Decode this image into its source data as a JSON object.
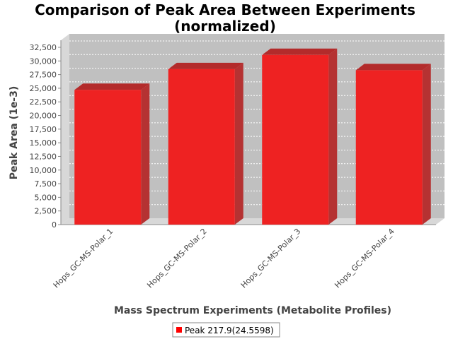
{
  "chart_data": {
    "type": "bar",
    "title": "Comparison of Peak Area Between Experiments",
    "subtitle": "(normalized)",
    "xlabel": "Mass Spectrum Experiments (Metabolite Profiles)",
    "ylabel": "Peak Area (1e-3)",
    "categories": [
      "Hops_GC-MS-Polar_1",
      "Hops_GC-MS-Polar_2",
      "Hops_GC-MS-Polar_3",
      "Hops_GC-MS-Polar_4"
    ],
    "series": [
      {
        "name": "Peak 217.9(24.5598)",
        "values": [
          24700,
          28500,
          31100,
          28300
        ]
      }
    ],
    "ylim": [
      0,
      32500
    ],
    "yticks": [
      0,
      2500,
      5000,
      7500,
      10000,
      12500,
      15000,
      17500,
      20000,
      22500,
      25000,
      27500,
      30000,
      32500
    ],
    "ytick_labels": [
      "0",
      "2,500",
      "5,000",
      "7,500",
      "10,000",
      "12,500",
      "15,000",
      "17,500",
      "20,000",
      "22,500",
      "25,000",
      "27,500",
      "30,000",
      "32,500"
    ],
    "grid": true,
    "legend_position": "bottom-center",
    "colors": {
      "bar_front": "#ee2222",
      "bar_top": "#b32b2b",
      "bar_side": "#b53232",
      "plot_back": "#c0c0c0",
      "plot_floor": "#d8d8d8",
      "grid": "#ffffff",
      "legend_swatch": "#ff0000"
    }
  }
}
